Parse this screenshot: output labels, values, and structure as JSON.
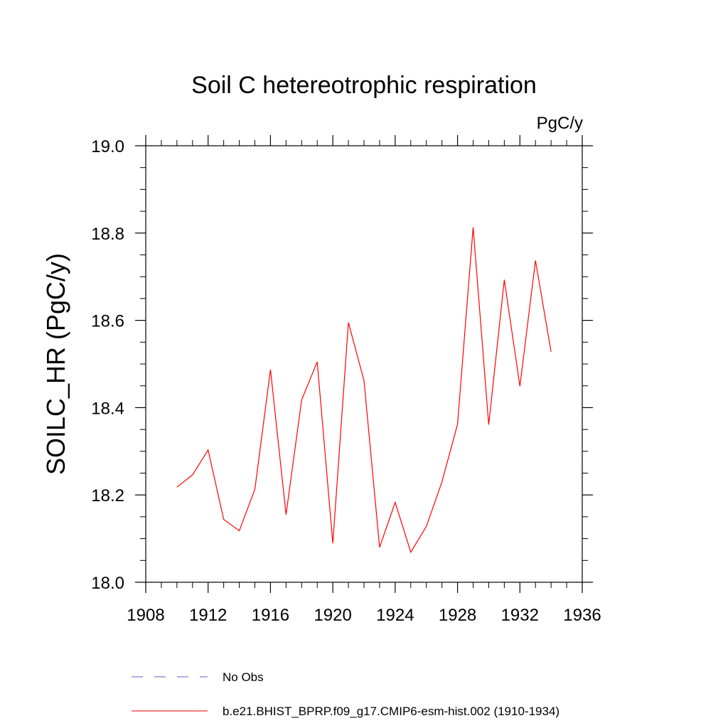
{
  "chart_data": {
    "type": "line",
    "title": "Soil C hetereotrophic respiration",
    "units_label": "PgC/y",
    "xlabel": "",
    "ylabel": "SOILC_HR  (PgC/y)",
    "xlim": [
      1908,
      1936
    ],
    "ylim": [
      18.0,
      19.0
    ],
    "x_ticks": [
      1908,
      1912,
      1916,
      1920,
      1924,
      1928,
      1932,
      1936
    ],
    "x_tick_labels": [
      "1908",
      "1912",
      "1916",
      "1920",
      "1924",
      "1928",
      "1932",
      "1936"
    ],
    "x_minor_step": 1,
    "y_ticks": [
      18.0,
      18.2,
      18.4,
      18.6,
      18.8,
      19.0
    ],
    "y_tick_labels": [
      "18.0",
      "18.2",
      "18.4",
      "18.6",
      "18.8",
      "19.0"
    ],
    "y_minor_step": 0.05,
    "grid": false,
    "series": [
      {
        "name": "b.e21.BHIST_BPRP.f09_g17.CMIP6-esm-hist.002 (1910-1934)",
        "color": "#ff0000",
        "dash": "solid",
        "x": [
          1910,
          1911,
          1912,
          1913,
          1914,
          1915,
          1916,
          1917,
          1918,
          1919,
          1920,
          1921,
          1922,
          1923,
          1924,
          1925,
          1926,
          1927,
          1928,
          1929,
          1930,
          1931,
          1932,
          1933,
          1934
        ],
        "values": [
          18.218,
          18.246,
          18.303,
          18.144,
          18.118,
          18.213,
          18.487,
          18.155,
          18.418,
          18.505,
          18.089,
          18.595,
          18.462,
          18.08,
          18.183,
          18.069,
          18.128,
          18.23,
          18.362,
          18.813,
          18.361,
          18.693,
          18.449,
          18.737,
          18.528
        ]
      }
    ],
    "legend": [
      {
        "label": "No Obs",
        "color": "#6a5acd",
        "dash": "dashed"
      },
      {
        "label": "b.e21.BHIST_BPRP.f09_g17.CMIP6-esm-hist.002 (1910-1934)",
        "color": "#ff0000",
        "dash": "solid"
      }
    ],
    "legend_position": "bottom"
  }
}
